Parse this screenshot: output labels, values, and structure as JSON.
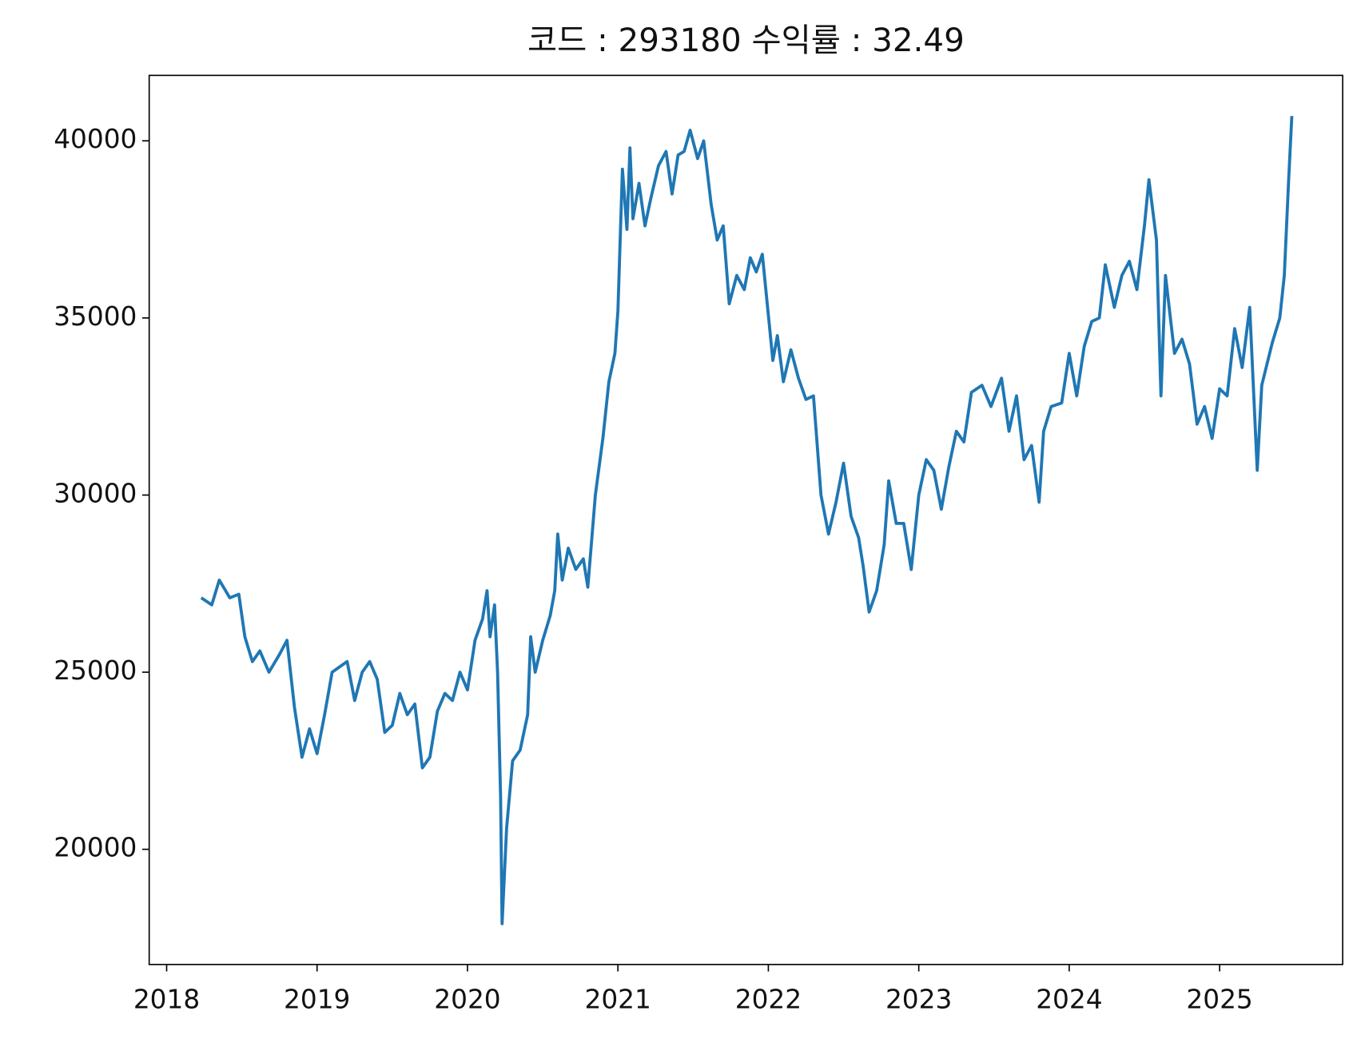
{
  "chart_data": {
    "type": "line",
    "title": "코드 : 293180 수익률 : 32.49",
    "x": [
      2018.23,
      2018.3,
      2018.35,
      2018.42,
      2018.48,
      2018.52,
      2018.57,
      2018.62,
      2018.68,
      2018.75,
      2018.8,
      2018.85,
      2018.9,
      2018.95,
      2019.0,
      2019.05,
      2019.1,
      2019.2,
      2019.25,
      2019.3,
      2019.35,
      2019.4,
      2019.45,
      2019.5,
      2019.55,
      2019.6,
      2019.65,
      2019.7,
      2019.75,
      2019.8,
      2019.85,
      2019.9,
      2019.95,
      2020.0,
      2020.05,
      2020.1,
      2020.13,
      2020.15,
      2020.18,
      2020.2,
      2020.22,
      2020.23,
      2020.26,
      2020.3,
      2020.35,
      2020.4,
      2020.42,
      2020.45,
      2020.5,
      2020.55,
      2020.58,
      2020.6,
      2020.63,
      2020.67,
      2020.72,
      2020.77,
      2020.8,
      2020.85,
      2020.9,
      2020.94,
      2020.98,
      2021.0,
      2021.03,
      2021.06,
      2021.08,
      2021.1,
      2021.14,
      2021.18,
      2021.22,
      2021.27,
      2021.32,
      2021.36,
      2021.4,
      2021.44,
      2021.48,
      2021.53,
      2021.57,
      2021.62,
      2021.66,
      2021.7,
      2021.74,
      2021.79,
      2021.84,
      2021.88,
      2021.92,
      2021.96,
      2022.03,
      2022.06,
      2022.1,
      2022.15,
      2022.2,
      2022.25,
      2022.3,
      2022.35,
      2022.4,
      2022.45,
      2022.5,
      2022.55,
      2022.6,
      2022.63,
      2022.67,
      2022.72,
      2022.77,
      2022.8,
      2022.85,
      2022.9,
      2022.95,
      2023.0,
      2023.05,
      2023.1,
      2023.15,
      2023.2,
      2023.25,
      2023.3,
      2023.35,
      2023.42,
      2023.48,
      2023.55,
      2023.6,
      2023.65,
      2023.7,
      2023.75,
      2023.8,
      2023.83,
      2023.88,
      2023.95,
      2024.0,
      2024.05,
      2024.1,
      2024.15,
      2024.2,
      2024.24,
      2024.3,
      2024.35,
      2024.4,
      2024.45,
      2024.5,
      2024.53,
      2024.58,
      2024.61,
      2024.64,
      2024.7,
      2024.75,
      2024.8,
      2024.85,
      2024.9,
      2024.95,
      2025.0,
      2025.05,
      2025.1,
      2025.15,
      2025.2,
      2025.25,
      2025.28,
      2025.35,
      2025.4,
      2025.43,
      2025.46,
      2025.48
    ],
    "series": [
      {
        "color": "#1f77b4",
        "values": [
          27100,
          26900,
          27600,
          27100,
          27200,
          26000,
          25300,
          25600,
          25000,
          25500,
          25900,
          24000,
          22600,
          23400,
          22700,
          23800,
          25000,
          25300,
          24200,
          25000,
          25300,
          24800,
          23300,
          23500,
          24400,
          23800,
          24100,
          22300,
          22600,
          23900,
          24400,
          24200,
          25000,
          24500,
          25900,
          26500,
          27300,
          26000,
          26900,
          25000,
          21500,
          17900,
          20600,
          22500,
          22800,
          23800,
          26000,
          25000,
          25900,
          26600,
          27300,
          28900,
          27600,
          28500,
          27900,
          28200,
          27400,
          30000,
          31600,
          33200,
          34000,
          35200,
          39200,
          37500,
          39800,
          37800,
          38800,
          37600,
          38400,
          39300,
          39700,
          38500,
          39600,
          39700,
          40300,
          39500,
          40000,
          38200,
          37200,
          37600,
          35400,
          36200,
          35800,
          36700,
          36300,
          36800,
          33800,
          34500,
          33200,
          34100,
          33300,
          32700,
          32800,
          30000,
          28900,
          29800,
          30900,
          29400,
          28800,
          28000,
          26700,
          27300,
          28600,
          30400,
          29200,
          29200,
          27900,
          30000,
          31000,
          30700,
          29600,
          30800,
          31800,
          31500,
          32900,
          33100,
          32500,
          33300,
          31800,
          32800,
          31000,
          31400,
          29800,
          31800,
          32500,
          32600,
          34000,
          32800,
          34200,
          34900,
          35000,
          36500,
          35300,
          36200,
          36600,
          35800,
          37600,
          38900,
          37200,
          32800,
          36200,
          34000,
          34400,
          33700,
          32000,
          32500,
          31600,
          33000,
          32800,
          34700,
          33600,
          35300,
          30700,
          33100,
          34300,
          35000,
          36200,
          39000,
          40700
        ]
      }
    ],
    "xlim": [
      2017.884,
      2025.818
    ],
    "xticks": [
      2018,
      2019,
      2020,
      2021,
      2022,
      2023,
      2024,
      2025
    ],
    "ylim": [
      16749,
      41847
    ],
    "yticks": [
      20000,
      25000,
      30000,
      35000,
      40000
    ]
  }
}
